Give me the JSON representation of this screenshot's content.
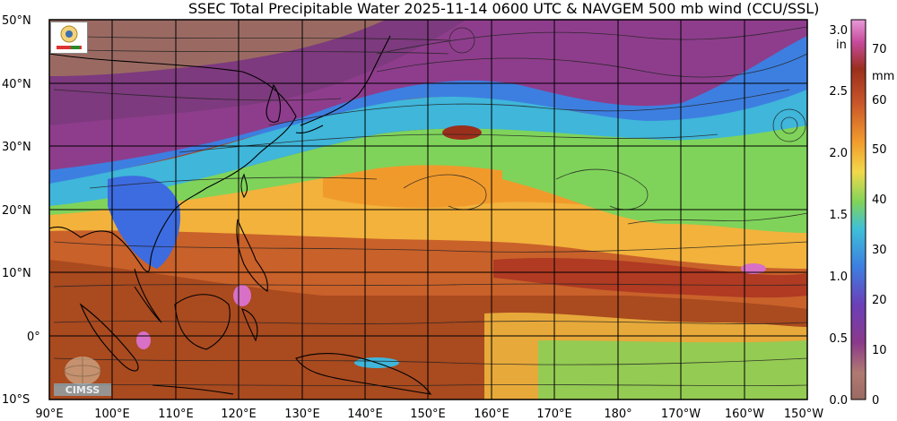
{
  "header": {
    "title": "SSEC Total Precipitable Water  2025-11-14 0600 UTC & NAVGEM 500 mb wind (CCU/SSL)"
  },
  "axes": {
    "lat_labels": [
      "50°N",
      "40°N",
      "30°N",
      "20°N",
      "10°N",
      "0°",
      "10°S"
    ],
    "lon_labels": [
      "90°E",
      "100°E",
      "110°E",
      "120°E",
      "130°E",
      "140°E",
      "150°E",
      "160°E",
      "170°E",
      "180°",
      "170°W",
      "160°W",
      "150°W"
    ]
  },
  "colorbar": {
    "in_unit": "in",
    "mm_unit": "mm",
    "in_ticks": [
      "3.0",
      "2.5",
      "2.0",
      "1.5",
      "1.0",
      "0.5",
      "0.0"
    ],
    "mm_ticks": [
      "70",
      "60",
      "50",
      "40",
      "30",
      "20",
      "10",
      "0"
    ]
  },
  "logos": {
    "cimss_text": "CIMSS"
  },
  "colors": {
    "dry_purple": "#8e3d8c",
    "blue": "#3d7fe0",
    "cyan": "#4fc7d6",
    "green": "#7fd35a",
    "yellow": "#f2cc48",
    "orange": "#ee8b2b",
    "brown": "#a5451e",
    "pink": "#d870c6"
  }
}
